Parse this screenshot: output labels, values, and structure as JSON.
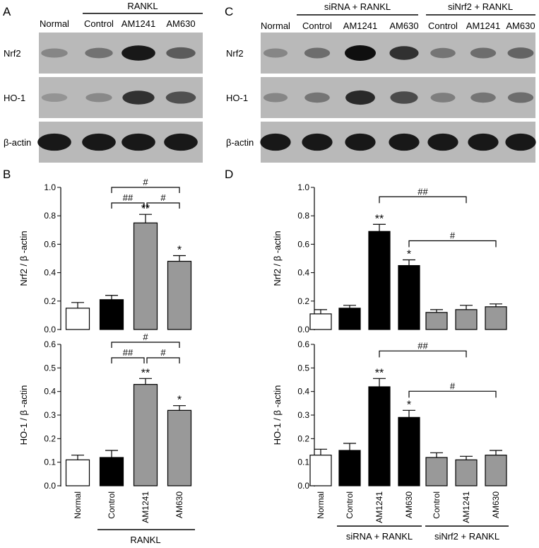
{
  "panels": {
    "a": "A",
    "b": "B",
    "c": "C",
    "d": "D"
  },
  "blots": {
    "left": {
      "top_label": "RANKL",
      "lanes": [
        "Normal",
        "Control",
        "AM1241",
        "AM630"
      ],
      "rows": [
        "Nrf2",
        "HO-1",
        "β-actin"
      ],
      "intensity": [
        [
          0.3,
          0.42,
          0.95,
          0.55
        ],
        [
          0.22,
          0.28,
          0.8,
          0.62
        ],
        [
          0.95,
          0.95,
          0.95,
          0.95
        ]
      ]
    },
    "right": {
      "group_labels": [
        "siRNA + RANKL",
        "siNrf2 + RANKL"
      ],
      "lanes": [
        "Normal",
        "Control",
        "AM1241",
        "AM630",
        "Control",
        "AM1241",
        "AM630"
      ],
      "rows": [
        "Nrf2",
        "HO-1",
        "β-actin"
      ],
      "intensity": [
        [
          0.3,
          0.45,
          1.0,
          0.8,
          0.4,
          0.45,
          0.5
        ],
        [
          0.3,
          0.4,
          0.85,
          0.65,
          0.35,
          0.4,
          0.45
        ],
        [
          0.95,
          0.95,
          0.95,
          0.95,
          0.95,
          0.95,
          0.95
        ]
      ]
    }
  },
  "chart_data": [
    {
      "panel": "B",
      "type": "bar",
      "categories": [
        "Normal",
        "Control",
        "AM1241",
        "AM630"
      ],
      "values": [
        0.15,
        0.21,
        0.75,
        0.48
      ],
      "errors": [
        0.04,
        0.03,
        0.06,
        0.04
      ],
      "fills": [
        "#ffffff",
        "#000000",
        "#999999",
        "#999999"
      ],
      "ylabel": "Nrf2 / β -actin",
      "ylim": [
        0,
        1.0
      ],
      "yticks": [
        "0.0",
        "0.2",
        "0.4",
        "0.6",
        "0.8",
        "1.0"
      ],
      "stars": [
        "",
        "",
        "**",
        "*"
      ],
      "brackets": [
        {
          "from": 1,
          "to": 3,
          "label": "#"
        },
        {
          "from": 1,
          "to": 2,
          "label": "##"
        },
        {
          "from": 2,
          "to": 3,
          "label": "#"
        }
      ]
    },
    {
      "panel": "B",
      "type": "bar",
      "categories": [
        "Normal",
        "Control",
        "AM1241",
        "AM630"
      ],
      "values": [
        0.11,
        0.12,
        0.43,
        0.32
      ],
      "errors": [
        0.02,
        0.03,
        0.025,
        0.02
      ],
      "fills": [
        "#ffffff",
        "#000000",
        "#999999",
        "#999999"
      ],
      "ylabel": "HO-1 / β -actin",
      "ylim": [
        0,
        0.6
      ],
      "yticks": [
        "0.0",
        "0.1",
        "0.2",
        "0.3",
        "0.4",
        "0.5",
        "0.6"
      ],
      "stars": [
        "",
        "",
        "**",
        "*"
      ],
      "brackets": [
        {
          "from": 1,
          "to": 3,
          "label": "#"
        },
        {
          "from": 1,
          "to": 2,
          "label": "##"
        },
        {
          "from": 2,
          "to": 3,
          "label": "#"
        }
      ],
      "group_label": "RANKL"
    },
    {
      "panel": "D",
      "type": "bar",
      "categories": [
        "Normal",
        "Control",
        "AM1241",
        "AM630",
        "Control",
        "AM1241",
        "AM630"
      ],
      "values": [
        0.11,
        0.15,
        0.69,
        0.45,
        0.12,
        0.14,
        0.16
      ],
      "errors": [
        0.03,
        0.02,
        0.05,
        0.04,
        0.02,
        0.03,
        0.02
      ],
      "fills": [
        "#ffffff",
        "#000000",
        "#000000",
        "#000000",
        "#999999",
        "#999999",
        "#999999"
      ],
      "ylabel": "Nrf2 / β -actin",
      "ylim": [
        0,
        1.0
      ],
      "yticks": [
        "0.0",
        "0.2",
        "0.4",
        "0.6",
        "0.8",
        "1.0"
      ],
      "stars": [
        "",
        "",
        "**",
        "*",
        "",
        "",
        ""
      ],
      "brackets": [
        {
          "from": 2,
          "to": 5,
          "label": "##"
        },
        {
          "from": 3,
          "to": 6,
          "label": "#"
        }
      ]
    },
    {
      "panel": "D",
      "type": "bar",
      "categories": [
        "Normal",
        "Control",
        "AM1241",
        "AM630",
        "Control",
        "AM1241",
        "AM630"
      ],
      "values": [
        0.13,
        0.15,
        0.42,
        0.29,
        0.12,
        0.11,
        0.13
      ],
      "errors": [
        0.025,
        0.03,
        0.035,
        0.03,
        0.02,
        0.015,
        0.02
      ],
      "fills": [
        "#ffffff",
        "#000000",
        "#000000",
        "#000000",
        "#999999",
        "#999999",
        "#999999"
      ],
      "ylabel": "HO-1 / β -actin",
      "ylim": [
        0,
        0.6
      ],
      "yticks": [
        "0.0",
        "0.1",
        "0.2",
        "0.3",
        "0.4",
        "0.5",
        "0.6"
      ],
      "stars": [
        "",
        "",
        "**",
        "*",
        "",
        "",
        ""
      ],
      "brackets": [
        {
          "from": 2,
          "to": 5,
          "label": "##"
        },
        {
          "from": 3,
          "to": 6,
          "label": "#"
        }
      ],
      "group_labels": [
        "siRNA + RANKL",
        "siNrf2 + RANKL"
      ]
    }
  ]
}
